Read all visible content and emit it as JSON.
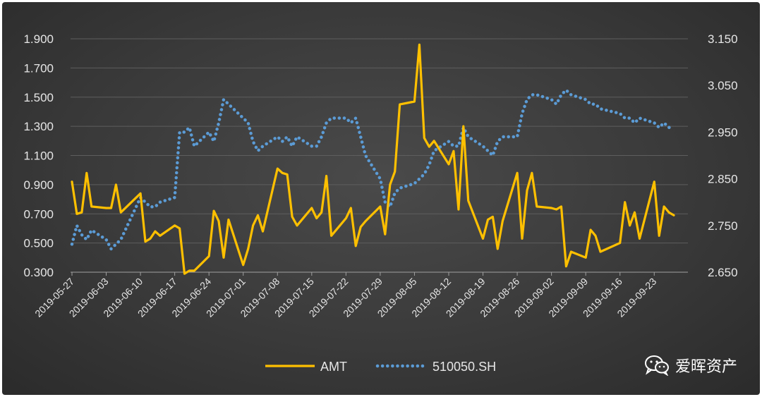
{
  "chart_data": {
    "type": "line",
    "title": "",
    "xlabel": "",
    "ylabel": "",
    "y_left": {
      "min": 0.3,
      "max": 1.9,
      "ticks": [
        "1.900",
        "1.700",
        "1.500",
        "1.300",
        "1.100",
        "0.900",
        "0.700",
        "0.500",
        "0.300"
      ]
    },
    "y_right": {
      "min": 2.65,
      "max": 3.15,
      "ticks": [
        "3.150",
        "3.050",
        "2.950",
        "2.850",
        "2.750",
        "2.650"
      ]
    },
    "x_ticks": [
      "2019-05-27",
      "2019-06-03",
      "2019-06-10",
      "2019-06-17",
      "2019-06-24",
      "2019-07-01",
      "2019-07-08",
      "2019-07-15",
      "2019-07-22",
      "2019-07-29",
      "2019-08-05",
      "2019-08-12",
      "2019-08-19",
      "2019-08-26",
      "2019-09-02",
      "2019-09-09",
      "2019-09-16",
      "2019-09-23"
    ],
    "grid": "horizontal",
    "legend_position": "bottom",
    "series": [
      {
        "name": "AMT",
        "axis": "left",
        "color": "#FFC000",
        "style": "solid",
        "x": [
          "2019-05-27",
          "2019-05-28",
          "2019-05-29",
          "2019-05-30",
          "2019-05-31",
          "2019-06-03",
          "2019-06-04",
          "2019-06-05",
          "2019-06-06",
          "2019-06-10",
          "2019-06-11",
          "2019-06-12",
          "2019-06-13",
          "2019-06-14",
          "2019-06-17",
          "2019-06-18",
          "2019-06-19",
          "2019-06-20",
          "2019-06-21",
          "2019-06-24",
          "2019-06-25",
          "2019-06-26",
          "2019-06-27",
          "2019-06-28",
          "2019-07-01",
          "2019-07-02",
          "2019-07-03",
          "2019-07-04",
          "2019-07-05",
          "2019-07-08",
          "2019-07-09",
          "2019-07-10",
          "2019-07-11",
          "2019-07-12",
          "2019-07-15",
          "2019-07-16",
          "2019-07-17",
          "2019-07-18",
          "2019-07-19",
          "2019-07-22",
          "2019-07-23",
          "2019-07-24",
          "2019-07-25",
          "2019-07-26",
          "2019-07-29",
          "2019-07-30",
          "2019-07-31",
          "2019-08-01",
          "2019-08-02",
          "2019-08-05",
          "2019-08-06",
          "2019-08-07",
          "2019-08-08",
          "2019-08-09",
          "2019-08-12",
          "2019-08-13",
          "2019-08-14",
          "2019-08-15",
          "2019-08-16",
          "2019-08-19",
          "2019-08-20",
          "2019-08-21",
          "2019-08-22",
          "2019-08-23",
          "2019-08-26",
          "2019-08-27",
          "2019-08-28",
          "2019-08-29",
          "2019-08-30",
          "2019-09-02",
          "2019-09-03",
          "2019-09-04",
          "2019-09-05",
          "2019-09-06",
          "2019-09-09",
          "2019-09-10",
          "2019-09-11",
          "2019-09-12",
          "2019-09-16",
          "2019-09-17",
          "2019-09-18",
          "2019-09-19",
          "2019-09-20",
          "2019-09-23",
          "2019-09-24",
          "2019-09-25",
          "2019-09-26",
          "2019-09-27"
        ],
        "values": [
          0.92,
          0.7,
          0.71,
          0.98,
          0.75,
          0.74,
          0.74,
          0.9,
          0.71,
          0.84,
          0.51,
          0.53,
          0.58,
          0.55,
          0.62,
          0.6,
          0.29,
          0.31,
          0.31,
          0.41,
          0.72,
          0.65,
          0.4,
          0.66,
          0.35,
          0.46,
          0.62,
          0.69,
          0.58,
          1.01,
          0.98,
          0.97,
          0.68,
          0.62,
          0.74,
          0.67,
          0.71,
          0.96,
          0.55,
          0.67,
          0.74,
          0.48,
          0.61,
          0.65,
          0.75,
          0.56,
          0.9,
          0.99,
          1.45,
          1.47,
          1.86,
          1.22,
          1.16,
          1.2,
          1.04,
          1.13,
          0.73,
          1.3,
          0.79,
          0.53,
          0.66,
          0.68,
          0.46,
          0.65,
          0.98,
          0.53,
          0.86,
          0.98,
          0.75,
          0.74,
          0.73,
          0.75,
          0.34,
          0.44,
          0.4,
          0.59,
          0.55,
          0.44,
          0.5,
          0.78,
          0.62,
          0.71,
          0.53,
          0.92,
          0.55,
          0.75,
          0.71,
          0.69
        ]
      },
      {
        "name": "510050.SH",
        "axis": "right",
        "color": "#5B9BD5",
        "style": "dotted",
        "x": [
          "2019-05-27",
          "2019-05-28",
          "2019-05-29",
          "2019-05-30",
          "2019-05-31",
          "2019-06-03",
          "2019-06-04",
          "2019-06-05",
          "2019-06-06",
          "2019-06-10",
          "2019-06-11",
          "2019-06-12",
          "2019-06-13",
          "2019-06-14",
          "2019-06-17",
          "2019-06-18",
          "2019-06-19",
          "2019-06-20",
          "2019-06-21",
          "2019-06-24",
          "2019-06-25",
          "2019-06-26",
          "2019-06-27",
          "2019-06-28",
          "2019-07-01",
          "2019-07-02",
          "2019-07-03",
          "2019-07-04",
          "2019-07-05",
          "2019-07-08",
          "2019-07-09",
          "2019-07-10",
          "2019-07-11",
          "2019-07-12",
          "2019-07-15",
          "2019-07-16",
          "2019-07-17",
          "2019-07-18",
          "2019-07-19",
          "2019-07-22",
          "2019-07-23",
          "2019-07-24",
          "2019-07-25",
          "2019-07-26",
          "2019-07-29",
          "2019-07-30",
          "2019-07-31",
          "2019-08-01",
          "2019-08-02",
          "2019-08-05",
          "2019-08-06",
          "2019-08-07",
          "2019-08-08",
          "2019-08-09",
          "2019-08-12",
          "2019-08-13",
          "2019-08-14",
          "2019-08-15",
          "2019-08-16",
          "2019-08-19",
          "2019-08-20",
          "2019-08-21",
          "2019-08-22",
          "2019-08-23",
          "2019-08-26",
          "2019-08-27",
          "2019-08-28",
          "2019-08-29",
          "2019-08-30",
          "2019-09-02",
          "2019-09-03",
          "2019-09-04",
          "2019-09-05",
          "2019-09-06",
          "2019-09-09",
          "2019-09-10",
          "2019-09-11",
          "2019-09-12",
          "2019-09-16",
          "2019-09-17",
          "2019-09-18",
          "2019-09-19",
          "2019-09-20",
          "2019-09-23",
          "2019-09-24",
          "2019-09-25",
          "2019-09-26",
          "2019-09-27"
        ],
        "values": [
          2.71,
          2.75,
          2.73,
          2.72,
          2.74,
          2.72,
          2.7,
          2.71,
          2.72,
          2.81,
          2.8,
          2.79,
          2.79,
          2.8,
          2.81,
          2.95,
          2.95,
          2.96,
          2.92,
          2.95,
          2.93,
          2.97,
          3.02,
          3.01,
          2.98,
          2.97,
          2.93,
          2.91,
          2.92,
          2.94,
          2.93,
          2.94,
          2.92,
          2.94,
          2.92,
          2.92,
          2.94,
          2.97,
          2.98,
          2.98,
          2.97,
          2.98,
          2.94,
          2.9,
          2.85,
          2.8,
          2.79,
          2.82,
          2.83,
          2.84,
          2.85,
          2.86,
          2.88,
          2.91,
          2.93,
          2.92,
          2.92,
          2.96,
          2.94,
          2.92,
          2.91,
          2.9,
          2.93,
          2.94,
          2.94,
          2.99,
          3.02,
          3.03,
          3.03,
          3.02,
          3.01,
          3.03,
          3.04,
          3.03,
          3.02,
          3.01,
          3.01,
          3.0,
          2.99,
          2.98,
          2.98,
          2.97,
          2.98,
          2.97,
          2.96,
          2.97,
          2.96,
          2.96
        ]
      }
    ]
  },
  "legend": [
    {
      "label": "AMT",
      "color": "#FFC000"
    },
    {
      "label": "510050.SH",
      "color": "#5B9BD5"
    }
  ],
  "watermark": {
    "text": "爱晖资产",
    "icon": "wechat-icon"
  }
}
